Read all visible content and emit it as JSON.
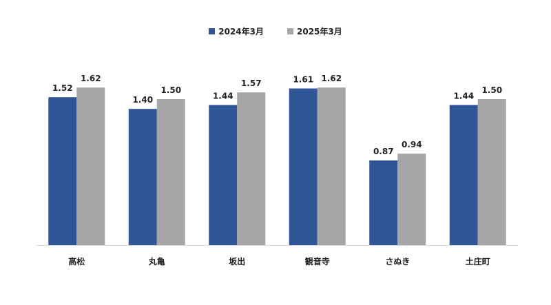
{
  "chart_data": {
    "type": "bar",
    "categories": [
      "高松",
      "丸亀",
      "坂出",
      "観音寺",
      "さぬき",
      "土庄町"
    ],
    "series": [
      {
        "name": "2024年3月",
        "values": [
          1.52,
          1.4,
          1.44,
          1.61,
          0.87,
          1.44
        ],
        "color": "#2f5597"
      },
      {
        "name": "2025年3月",
        "values": [
          1.62,
          1.5,
          1.57,
          1.62,
          0.94,
          1.5
        ],
        "color": "#a6a6a6"
      }
    ],
    "ylim": [
      0,
      2.0
    ],
    "grid": false,
    "legend_position": "top-center",
    "value_labels": true,
    "axis_color": "#d9d9d9"
  }
}
